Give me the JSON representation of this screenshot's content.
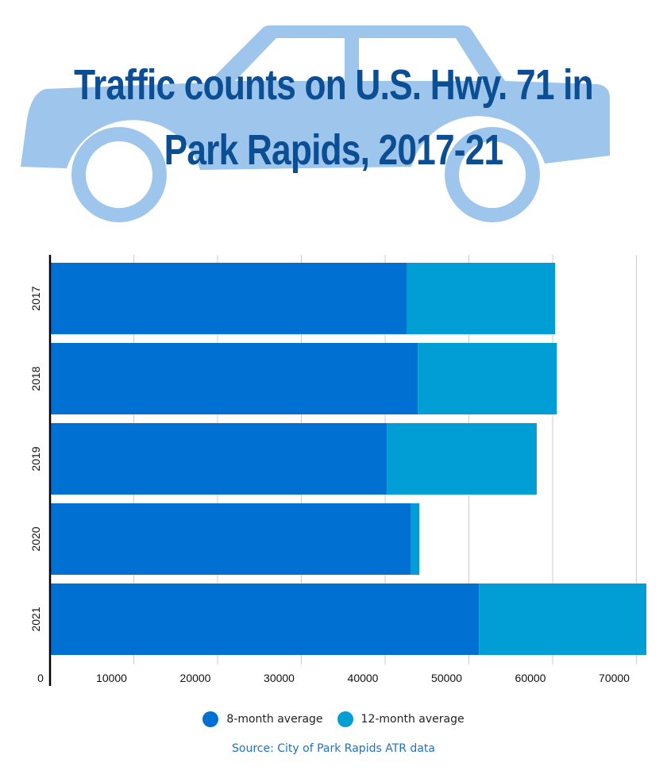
{
  "title": {
    "line1": "Traffic counts on U.S. Hwy. 71 in",
    "line2": "Park Rapids, 2017-21"
  },
  "source": "Source:  City of Park Rapids ATR data",
  "colors": {
    "title": "#0b4e93",
    "car": "#9ec6ec",
    "series_8": "#0070d2",
    "series_12": "#009ed4",
    "grid": "#cccccc",
    "source": "#1a73c7"
  },
  "chart_data": {
    "type": "bar",
    "orientation": "horizontal",
    "stacked": true,
    "categories": [
      "2017",
      "2018",
      "2019",
      "2020",
      "2021"
    ],
    "series": [
      {
        "name": "8-month average",
        "values": [
          42600,
          43900,
          40200,
          43100,
          51200
        ]
      },
      {
        "name": "12-month average",
        "values": [
          17700,
          16600,
          17900,
          1000,
          20500
        ]
      }
    ],
    "xlim": [
      0,
      70000
    ],
    "xticks": [
      0,
      10000,
      20000,
      30000,
      40000,
      50000,
      60000,
      70000
    ],
    "xlabel": "",
    "ylabel": "",
    "grid": true,
    "legend": "bottom"
  }
}
